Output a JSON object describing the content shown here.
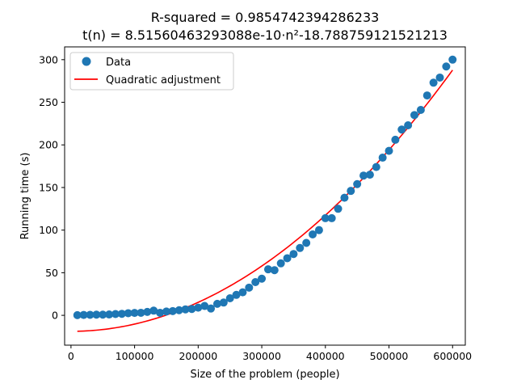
{
  "chart_data": {
    "type": "scatter",
    "title_line1": "R-squared = 0.9854742394286233",
    "title_line2": "t(n) = 8.51560463293088e-10·n²-18.788759121521213",
    "xlabel": "Size of the problem (people)",
    "ylabel": "Running time (s)",
    "xlim": [
      -10000,
      620000
    ],
    "ylim": [
      -35,
      315
    ],
    "xticks": [
      0,
      100000,
      200000,
      300000,
      400000,
      500000,
      600000
    ],
    "xtick_labels": [
      "0",
      "100000",
      "200000",
      "300000",
      "400000",
      "500000",
      "600000"
    ],
    "yticks": [
      0,
      50,
      100,
      150,
      200,
      250,
      300
    ],
    "ytick_labels": [
      "0",
      "50",
      "100",
      "150",
      "200",
      "250",
      "300"
    ],
    "legend_position": "top-left",
    "series": [
      {
        "name": "Data",
        "kind": "scatter",
        "color": "#1f77b4",
        "points": [
          [
            10000,
            0.2
          ],
          [
            20000,
            0.5
          ],
          [
            30000,
            0.6
          ],
          [
            40000,
            0.8
          ],
          [
            50000,
            0.8
          ],
          [
            60000,
            1.0
          ],
          [
            70000,
            1.5
          ],
          [
            80000,
            1.8
          ],
          [
            90000,
            2.5
          ],
          [
            100000,
            2.8
          ],
          [
            110000,
            3.0
          ],
          [
            120000,
            4.0
          ],
          [
            130000,
            5.5
          ],
          [
            140000,
            3.0
          ],
          [
            150000,
            4.5
          ],
          [
            160000,
            5.0
          ],
          [
            170000,
            6.0
          ],
          [
            180000,
            7.0
          ],
          [
            190000,
            7.5
          ],
          [
            200000,
            9.0
          ],
          [
            210000,
            11.0
          ],
          [
            220000,
            8.0
          ],
          [
            230000,
            13.5
          ],
          [
            240000,
            15.0
          ],
          [
            250000,
            20.0
          ],
          [
            260000,
            24.0
          ],
          [
            270000,
            27.0
          ],
          [
            280000,
            32.5
          ],
          [
            290000,
            39.0
          ],
          [
            300000,
            43.0
          ],
          [
            310000,
            54.0
          ],
          [
            320000,
            53.0
          ],
          [
            330000,
            61.0
          ],
          [
            340000,
            67.0
          ],
          [
            350000,
            72.0
          ],
          [
            360000,
            79.0
          ],
          [
            370000,
            85.0
          ],
          [
            380000,
            95.0
          ],
          [
            390000,
            100.0
          ],
          [
            400000,
            114.0
          ],
          [
            410000,
            114.0
          ],
          [
            420000,
            125.0
          ],
          [
            430000,
            138.0
          ],
          [
            440000,
            146.0
          ],
          [
            450000,
            154.0
          ],
          [
            460000,
            164.0
          ],
          [
            470000,
            165.0
          ],
          [
            480000,
            174.0
          ],
          [
            490000,
            185.0
          ],
          [
            500000,
            193.0
          ],
          [
            510000,
            206.0
          ],
          [
            520000,
            218.0
          ],
          [
            530000,
            223.0
          ],
          [
            540000,
            235.0
          ],
          [
            550000,
            241.0
          ],
          [
            560000,
            258.0
          ],
          [
            570000,
            273.0
          ],
          [
            580000,
            279.0
          ],
          [
            590000,
            292.0
          ],
          [
            600000,
            300.0
          ]
        ]
      },
      {
        "name": "Quadratic adjustment",
        "kind": "line",
        "color": "#ff0000",
        "coefficient_a": 8.51560463293088e-10,
        "intercept_b": -18.788759121521213,
        "x_range": [
          10000,
          600000
        ]
      }
    ]
  }
}
